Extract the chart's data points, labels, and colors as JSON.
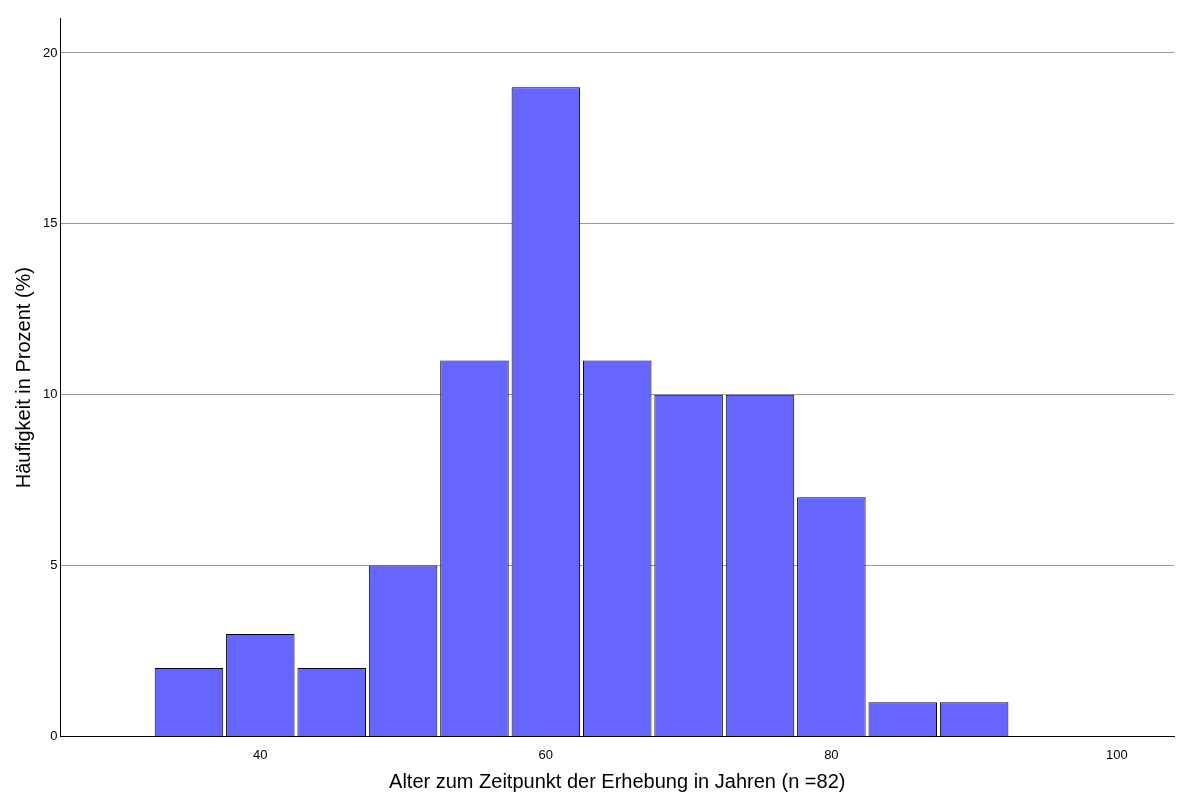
{
  "chart_data": {
    "type": "histogram",
    "xlabel": "Alter zum Zeitpunkt der Erhebung in Jahren (n =82)",
    "ylabel": "Häufigkeit in Prozent (%)",
    "bins": [
      32.5,
      37.5,
      42.5,
      47.5,
      52.5,
      57.5,
      62.5,
      67.5,
      72.5,
      77.5,
      82.5,
      87.5,
      92.5
    ],
    "values": [
      2,
      3,
      2,
      5,
      11,
      19,
      11,
      10,
      10,
      7,
      1,
      1
    ],
    "color": "#6666ff",
    "xlim": [
      26,
      104
    ],
    "xticks": [
      40,
      60,
      80,
      100
    ],
    "ylim": [
      0,
      21
    ],
    "yticks": [
      0,
      5,
      10,
      15,
      20
    ],
    "grid": "y"
  }
}
